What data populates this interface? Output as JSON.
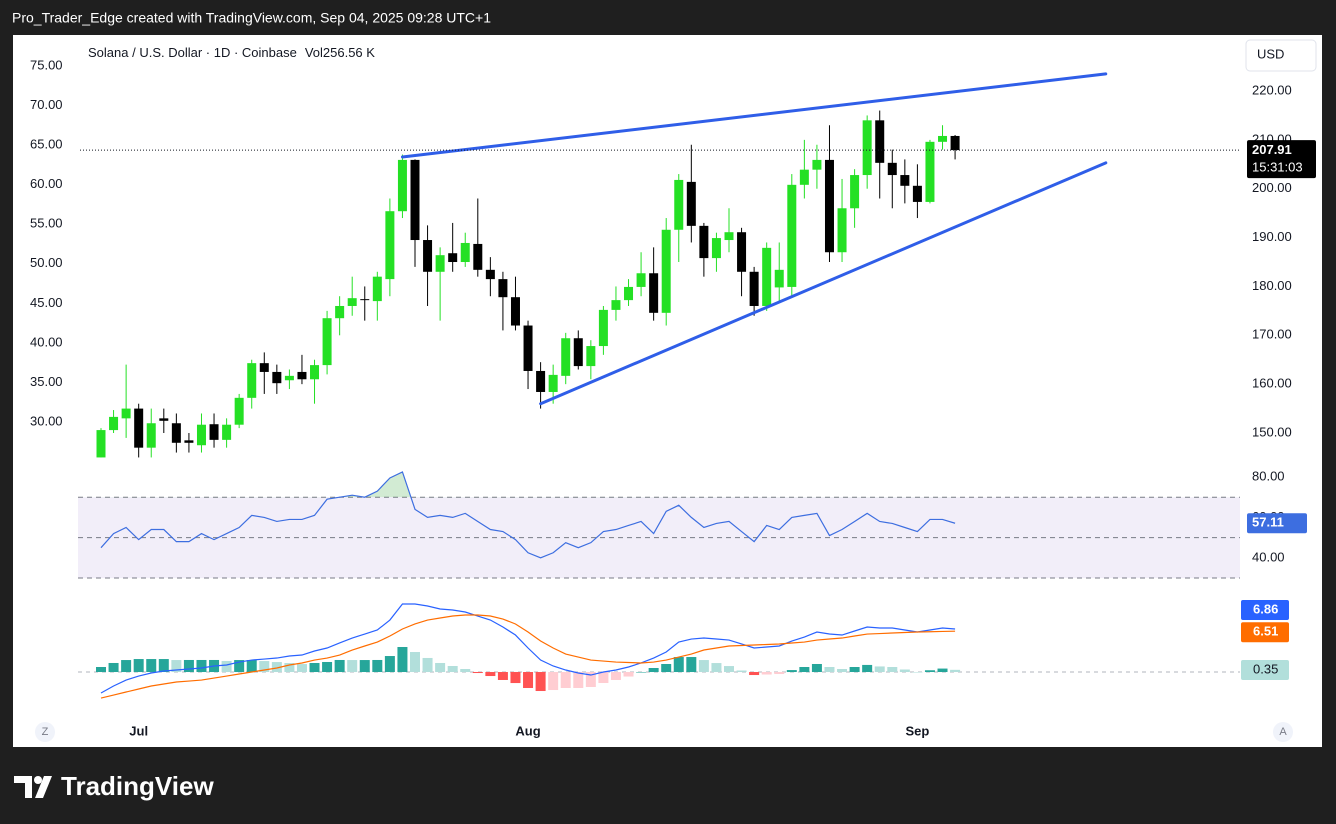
{
  "header": {
    "text": "Pro_Trader_Edge created with TradingView.com, Sep 04, 2025 09:28 UTC+1"
  },
  "footer": {
    "logo": "TradingView"
  },
  "controls": {
    "left": "Z",
    "right": "A"
  },
  "chart_data": [
    {
      "type": "candlestick",
      "title": "Solana / U.S. Dollar · 1D · Coinbase",
      "volume_label": "Vol",
      "volume": "256.56 K",
      "currency": "USD",
      "countdown": "15:31:03",
      "categories": [
        null,
        null,
        null,
        "Jul",
        null,
        null,
        null,
        null,
        null,
        null,
        null,
        null,
        null,
        null,
        null,
        null,
        null,
        null,
        null,
        null,
        null,
        null,
        null,
        null,
        null,
        null,
        null,
        null,
        null,
        null,
        null,
        null,
        null,
        null,
        "Aug",
        null,
        null,
        null,
        null,
        null,
        null,
        null,
        null,
        null,
        null,
        null,
        null,
        null,
        null,
        null,
        null,
        null,
        null,
        null,
        null,
        null,
        null,
        null,
        null,
        null,
        null,
        null,
        null,
        null,
        null,
        "Sep",
        null,
        null,
        null
      ],
      "open": [
        145,
        150.6,
        153,
        155,
        147,
        153,
        152,
        148.5,
        147.5,
        151.8,
        148.6,
        151.7,
        157.2,
        164.3,
        162.5,
        160.8,
        162.5,
        161,
        163.9,
        173.5,
        176,
        177.4,
        177,
        181.5,
        195.4,
        205.9,
        189.5,
        183,
        186.8,
        185,
        188.7,
        183.4,
        181.5,
        177.8,
        172,
        162.7,
        158.4,
        161.7,
        169.4,
        163.7,
        167.8,
        175.2,
        177.2,
        179.9,
        182.7,
        174.6,
        191.6,
        201.4,
        192.4,
        185.8,
        189.5,
        191.1,
        183,
        176,
        179.8,
        179.9,
        200.8,
        203.9,
        205.9,
        187,
        196,
        202.8,
        214,
        205.3,
        202.8,
        200.6,
        197.3,
        209.6,
        210.8
      ],
      "high": [
        151,
        154.7,
        164,
        156,
        155,
        155,
        154,
        150,
        154,
        154,
        153,
        158,
        165,
        166.5,
        164,
        163,
        166,
        165,
        175,
        178,
        182,
        180,
        183,
        198,
        207,
        206,
        192.5,
        188,
        193,
        191,
        198,
        186,
        183,
        182,
        173,
        164.5,
        164,
        170.5,
        171,
        169,
        176,
        180,
        181.5,
        187,
        188,
        194,
        203,
        209,
        193,
        191,
        196,
        192,
        184,
        189,
        189,
        203,
        210,
        209,
        213,
        202,
        204,
        215,
        216,
        208,
        206,
        205,
        210,
        213,
        211
      ],
      "low": [
        145,
        150,
        149,
        145,
        145,
        150,
        146,
        146,
        146,
        147,
        147,
        151,
        155,
        158,
        158,
        159,
        160,
        156,
        162,
        170,
        174,
        173,
        173,
        178,
        194,
        184,
        176,
        173,
        183,
        184,
        182,
        178,
        171,
        171,
        159,
        155,
        156,
        160,
        163,
        161,
        166,
        173,
        176,
        178,
        173,
        172,
        185,
        189,
        182,
        183,
        187,
        178,
        174,
        175,
        177,
        178,
        198,
        200,
        185,
        185,
        192,
        200,
        198,
        196,
        197,
        194,
        197,
        208,
        206
      ],
      "close": [
        150.6,
        153.3,
        155,
        147,
        152,
        152.5,
        148,
        148,
        151.7,
        148.6,
        151.7,
        157.2,
        164.3,
        162.5,
        160.2,
        161.7,
        161,
        163.9,
        173.5,
        176,
        177.6,
        177.2,
        182,
        195.4,
        205.9,
        189.5,
        183,
        186.4,
        185,
        188.9,
        183.4,
        181.5,
        177.8,
        172,
        162.7,
        158.4,
        161.9,
        169.4,
        163.7,
        167.8,
        175.2,
        177.2,
        179.9,
        182.7,
        174.6,
        191.6,
        201.8,
        192.4,
        185.8,
        189.9,
        191.1,
        183,
        176,
        187.9,
        183.4,
        200.8,
        203.9,
        205.9,
        187,
        196,
        202.8,
        214,
        205.3,
        202.8,
        200.6,
        197.3,
        209.6,
        210.8,
        207.91
      ],
      "up_color": "#24e024",
      "down_color": "#000000",
      "axis": "y2",
      "ylim": [
        23.93,
        78.79
      ],
      "yticks": [
        {
          "value": 75,
          "label": "75.00"
        },
        {
          "value": 70,
          "label": "70.00"
        },
        {
          "value": 65,
          "label": "65.00"
        },
        {
          "value": 60,
          "label": "60.00"
        },
        {
          "value": 55,
          "label": "55.00"
        },
        {
          "value": 50,
          "label": "50.00"
        },
        {
          "value": 45,
          "label": "45.00"
        },
        {
          "value": 40,
          "label": "40.00"
        },
        {
          "value": 35,
          "label": "35.00"
        },
        {
          "value": 30,
          "label": "30.00"
        }
      ],
      "y2lim": [
        142.43,
        231.26
      ],
      "y2ticks": [
        {
          "value": 220,
          "label": "220.00"
        },
        {
          "value": 210,
          "label": "210.00"
        },
        {
          "value": 200,
          "label": "200.00"
        },
        {
          "value": 190,
          "label": "190.00"
        },
        {
          "value": 180,
          "label": "180.00"
        },
        {
          "value": 170,
          "label": "170.00"
        },
        {
          "value": 160,
          "label": "160.00"
        },
        {
          "value": 150,
          "label": "150.00"
        }
      ],
      "trendlines": [
        {
          "x": [
            24,
            80
          ],
          "values": [
            206.5,
            223.5
          ]
        },
        {
          "x": [
            35,
            80
          ],
          "values": [
            156,
            205.3
          ]
        }
      ],
      "trendline_color": "#2f5ee8",
      "grid": false
    },
    {
      "type": "line",
      "values": [
        45,
        52,
        55,
        49,
        54,
        54,
        48,
        48,
        52,
        49,
        52,
        55,
        61,
        60,
        58,
        59,
        59,
        61,
        69,
        70,
        71,
        70,
        73,
        79.5,
        82.5,
        64,
        60,
        61,
        60,
        62,
        58,
        54,
        53,
        49,
        42.5,
        40,
        42.5,
        47.5,
        45,
        47.5,
        53,
        54,
        56,
        58,
        52,
        63,
        66,
        60,
        55,
        57,
        58,
        53,
        48,
        56,
        54,
        60,
        61,
        62,
        51,
        54,
        58,
        62,
        58,
        57,
        55,
        53,
        59,
        59,
        57.11
      ],
      "color": "#3d6ee0",
      "ylim": [
        24.07,
        83.46
      ],
      "yticks": [
        {
          "value": 80,
          "label": "80.00"
        },
        {
          "value": 60,
          "label": "60.00"
        },
        {
          "value": 40,
          "label": "40.00"
        }
      ],
      "band": [
        30,
        70
      ],
      "midline": 50,
      "band_color": "#7e57c2",
      "overbought_color": "#4caf50"
    },
    {
      "type": "macd",
      "series": [
        {
          "values": [
            -3.35,
            -2.23,
            -1.28,
            -0.64,
            -0.16,
            0.16,
            0.32,
            0.48,
            0.64,
            0.96,
            1.12,
            1.59,
            1.91,
            2.07,
            2.23,
            2.55,
            2.71,
            3.35,
            3.83,
            4.63,
            5.42,
            6.06,
            6.7,
            8.29,
            10.85,
            10.85,
            10.53,
            10.05,
            9.89,
            9.57,
            8.93,
            8.29,
            7.18,
            5.9,
            3.83,
            1.91,
            0.96,
            0.32,
            -0.16,
            -0.48,
            0,
            0.32,
            0.8,
            1.44,
            2.23,
            3.19,
            4.78,
            5.26,
            5.42,
            5.26,
            5.1,
            4.47,
            3.83,
            3.99,
            4.15,
            4.94,
            5.58,
            6.38,
            6.06,
            5.9,
            6.54,
            7.18,
            7.02,
            7.02,
            6.7,
            6.38,
            6.7,
            7.02,
            6.86
          ],
          "color": "#2962ff"
        },
        {
          "values": [
            -4.15,
            -3.67,
            -3.19,
            -2.71,
            -2.23,
            -1.91,
            -1.59,
            -1.44,
            -1.28,
            -0.96,
            -0.64,
            -0.32,
            0,
            0.32,
            0.64,
            1.12,
            1.44,
            1.91,
            2.23,
            2.71,
            3.51,
            4.15,
            4.78,
            5.74,
            6.86,
            7.66,
            8.29,
            8.61,
            8.93,
            9.09,
            9.09,
            8.93,
            8.45,
            7.66,
            6.38,
            4.94,
            3.83,
            2.87,
            2.39,
            1.91,
            1.75,
            1.59,
            1.52,
            1.44,
            1.59,
            1.91,
            2.39,
            2.87,
            3.51,
            3.83,
            4.15,
            4.23,
            4.31,
            4.39,
            4.47,
            4.63,
            4.78,
            5.1,
            5.26,
            5.42,
            5.74,
            6.05,
            6.13,
            6.22,
            6.3,
            6.38,
            6.42,
            6.47,
            6.51
          ],
          "color": "#ff6d00"
        }
      ],
      "histogram": {
        "values": [
          0.8,
          1.44,
          1.91,
          2.07,
          2.07,
          2.07,
          1.91,
          1.92,
          1.92,
          1.92,
          1.76,
          1.91,
          1.91,
          1.75,
          1.59,
          1.43,
          1.27,
          1.44,
          1.6,
          1.92,
          1.91,
          1.91,
          1.92,
          2.55,
          3.99,
          3.19,
          2.24,
          1.44,
          0.96,
          0.48,
          -0.16,
          -0.64,
          -1.27,
          -1.76,
          -2.55,
          -3.03,
          -2.87,
          -2.55,
          -2.55,
          -2.39,
          -1.75,
          -1.27,
          -0.72,
          0,
          0.64,
          1.28,
          2.39,
          2.39,
          1.91,
          1.43,
          0.95,
          0.24,
          -0.48,
          -0.4,
          -0.32,
          0.31,
          0.8,
          1.28,
          0.8,
          0.48,
          0.8,
          1.13,
          0.89,
          0.8,
          0.4,
          0,
          0.28,
          0.55,
          0.35
        ],
        "colors": [
          "#26a69a",
          "#b2dfdb",
          "#ffcdd2",
          "#ff5252"
        ]
      },
      "ylim": [
        -5.26,
        13.08
      ]
    }
  ]
}
